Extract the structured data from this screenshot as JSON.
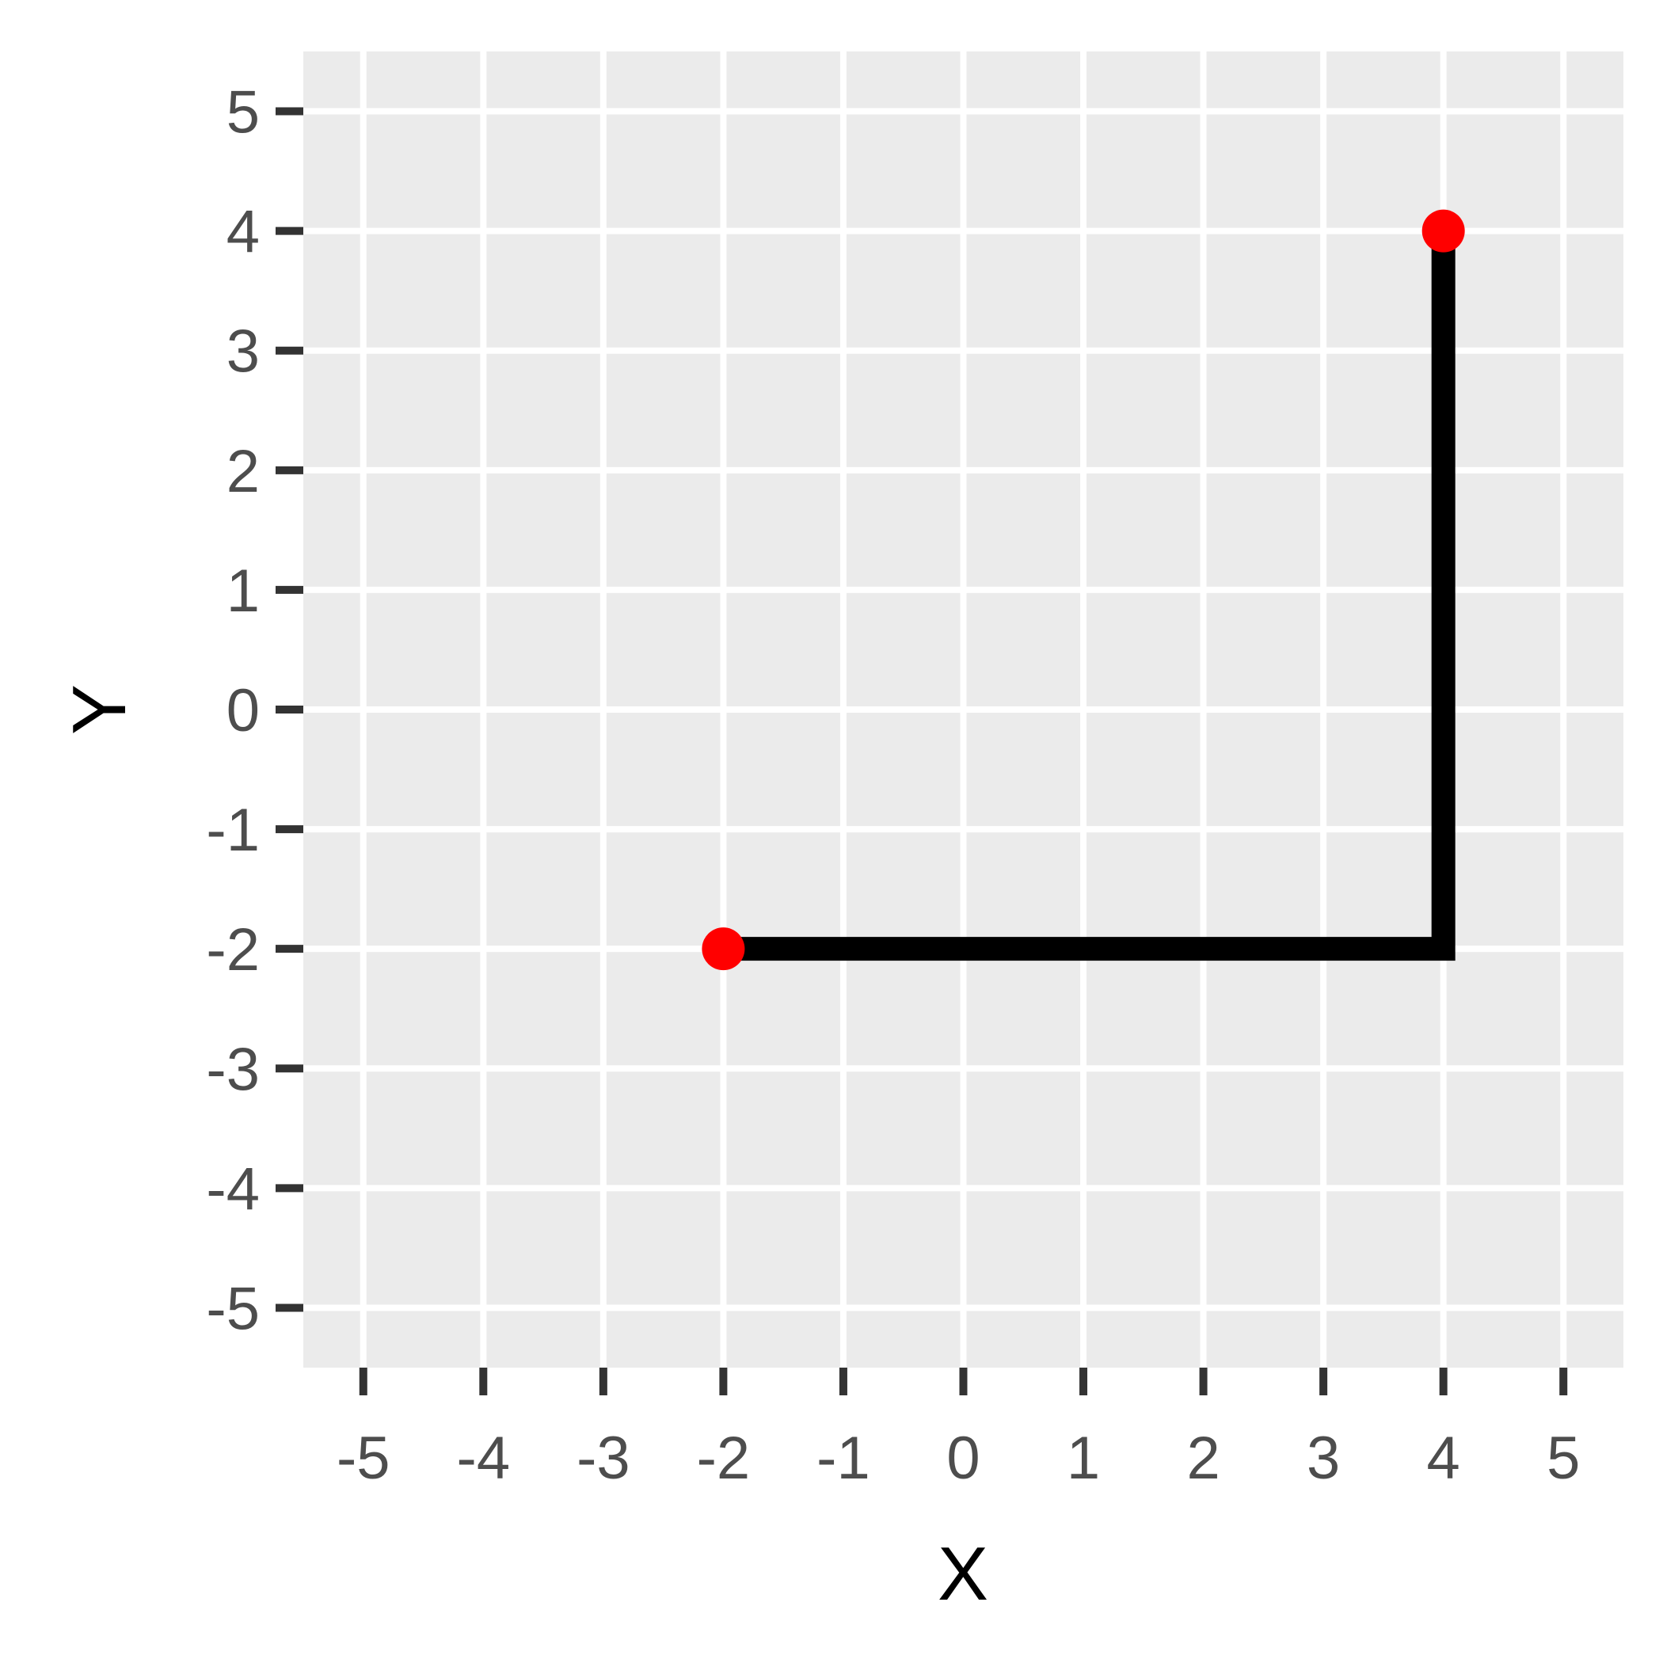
{
  "chart_data": {
    "type": "line",
    "xlabel": "X",
    "ylabel": "Y",
    "xlim": [
      -5.5,
      5.5
    ],
    "ylim": [
      -5.5,
      5.5
    ],
    "x_ticks": [
      -5,
      -4,
      -3,
      -2,
      -1,
      0,
      1,
      2,
      3,
      4,
      5
    ],
    "y_ticks": [
      -5,
      -4,
      -3,
      -2,
      -1,
      0,
      1,
      2,
      3,
      4,
      5
    ],
    "grid": true,
    "series": [
      {
        "type": "line",
        "points": [
          {
            "x": -2,
            "y": -2
          },
          {
            "x": 4,
            "y": -2
          },
          {
            "x": 4,
            "y": 4
          }
        ]
      },
      {
        "type": "scatter",
        "points": [
          {
            "x": -2,
            "y": -2
          },
          {
            "x": 4,
            "y": 4
          }
        ]
      }
    ],
    "colors": {
      "panel_background": "#ebebeb",
      "grid": "#ffffff",
      "line": "#000000",
      "points": "#ff0000",
      "tick_marks": "#333333",
      "tick_labels": "#4d4d4d"
    }
  }
}
